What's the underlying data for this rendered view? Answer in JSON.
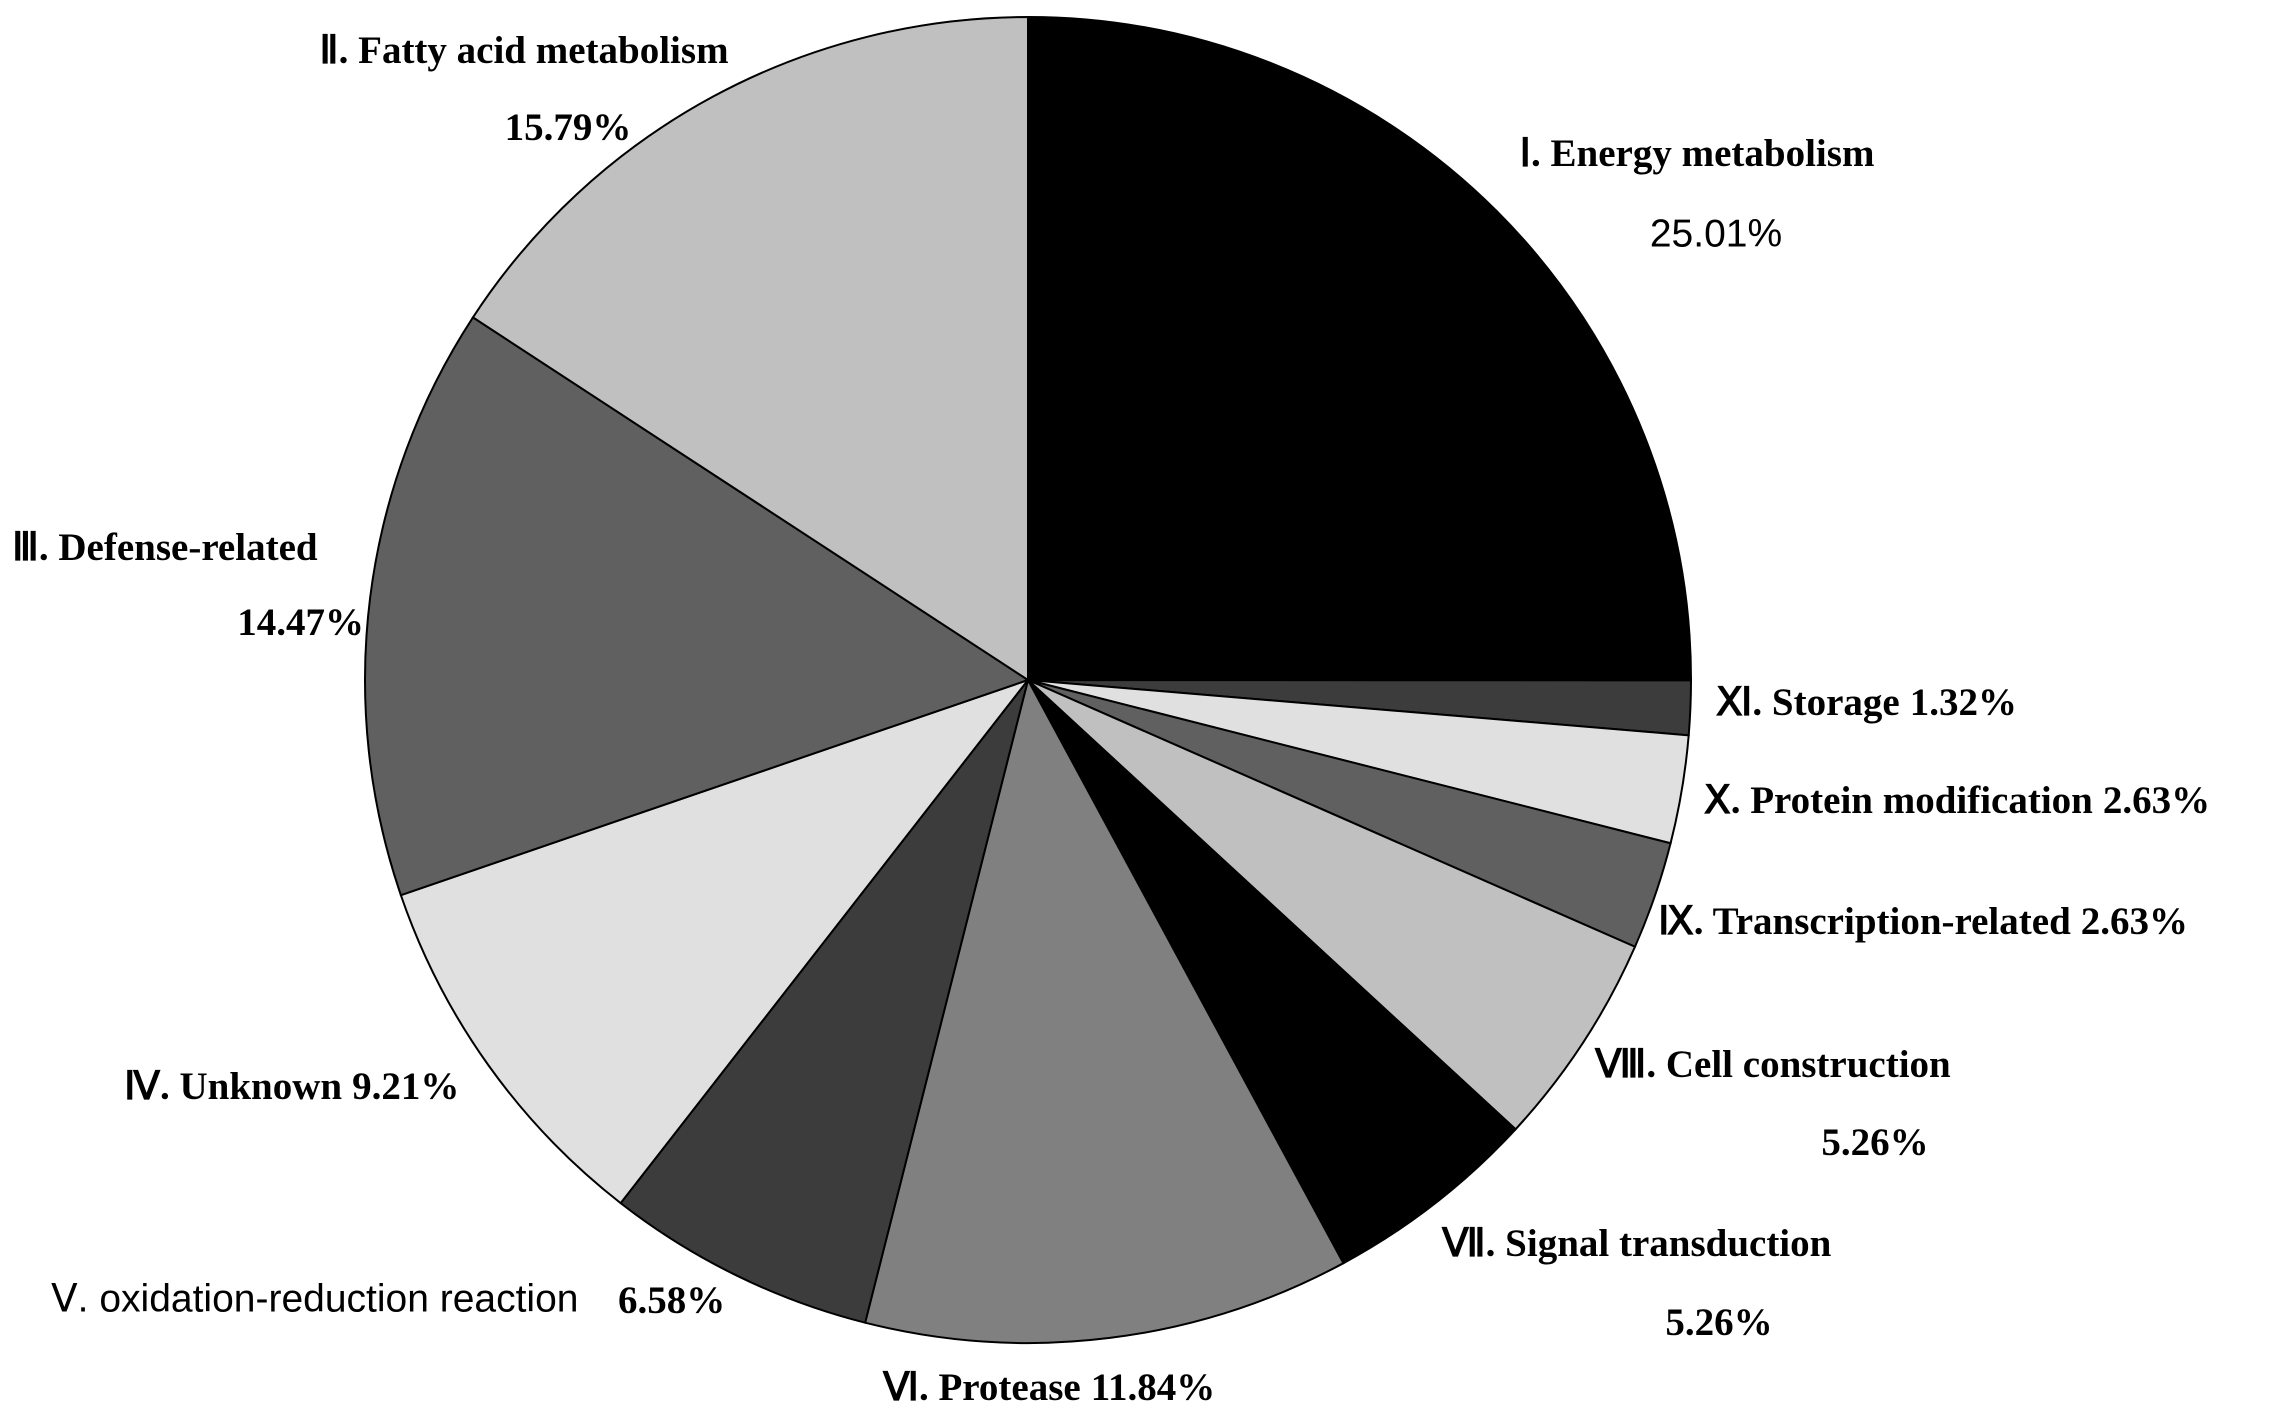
{
  "chart_data": {
    "type": "pie",
    "categories": [
      "Ⅰ. Energy metabolism",
      "Ⅺ. Storage",
      "Ⅹ. Protein modification",
      "Ⅸ. Transcription-related",
      "Ⅷ. Cell construction",
      "Ⅶ. Signal transduction",
      "Ⅵ. Protease",
      "Ⅴ. oxidation-reduction reaction",
      "Ⅳ. Unknown",
      "Ⅲ. Defense-related",
      "Ⅱ. Fatty acid metabolism"
    ],
    "values": [
      25.01,
      1.32,
      2.63,
      2.63,
      5.26,
      5.26,
      11.84,
      6.58,
      9.21,
      14.47,
      15.79
    ],
    "value_labels": [
      "25.01%",
      "1.32%",
      "2.63%",
      "2.63%",
      "5.26%",
      "5.26%",
      "11.84%",
      "6.58%",
      "9.21%",
      "14.47%",
      "15.79%"
    ],
    "colors": [
      "#000000",
      "#3c3c3c",
      "#e0e0e0",
      "#606060",
      "#c0c0c0",
      "#000000",
      "#808080",
      "#3c3c3c",
      "#e0e0e0",
      "#606060",
      "#c0c0c0"
    ]
  }
}
